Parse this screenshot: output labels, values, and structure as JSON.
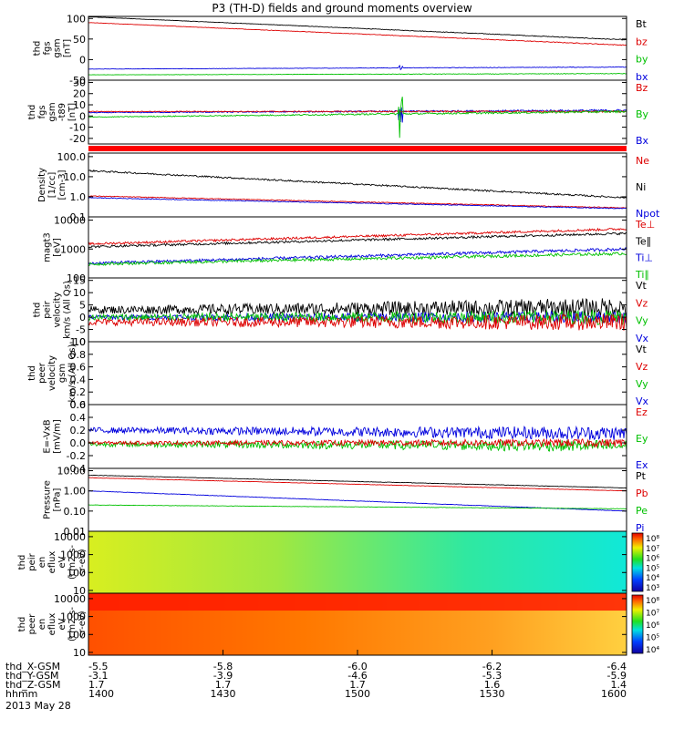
{
  "title": "P3 (TH-D) fields and ground moments overview",
  "date_label": "2013 May 28",
  "panels": [
    {
      "id": "fgs_gsm",
      "ylabel": [
        "thd",
        "fgs",
        "gsm",
        "[nT]"
      ],
      "scale": "linear",
      "ylim": [
        -50,
        105
      ],
      "yticks": [
        "100",
        "50",
        "0",
        "-50"
      ],
      "ytick_values": [
        100,
        50,
        0,
        -50
      ],
      "legend": [
        {
          "label": "Bt",
          "color": "#000000"
        },
        {
          "label": "bz",
          "color": "#dd0000"
        },
        {
          "label": "by",
          "color": "#00c000"
        },
        {
          "label": "bx",
          "color": "#0000dd"
        }
      ],
      "series": [
        {
          "color": "#000000",
          "start": 104,
          "end": 48,
          "noise": 0.6
        },
        {
          "color": "#dd0000",
          "start": 90,
          "end": 35,
          "noise": 0.6
        },
        {
          "color": "#0000dd",
          "start": -23,
          "end": -18,
          "noise": 0.5,
          "spike": 8
        },
        {
          "color": "#00c000",
          "start": -37,
          "end": -34,
          "noise": 0.5
        }
      ]
    },
    {
      "id": "fgs_gsm_dt",
      "ylabel": [
        "thd",
        "fgs",
        "gsm",
        "-t89",
        "[nT]"
      ],
      "scale": "linear",
      "ylim": [
        -25,
        32
      ],
      "yticks": [
        "30",
        "20",
        "10",
        "0",
        "-10",
        "-20"
      ],
      "ytick_values": [
        30,
        20,
        10,
        0,
        -10,
        -20
      ],
      "legend": [
        {
          "label": "Bz",
          "color": "#dd0000"
        },
        {
          "label": "By",
          "color": "#00c000"
        },
        {
          "label": "Bx",
          "color": "#0000dd"
        }
      ],
      "series": [
        {
          "color": "#0000dd",
          "start": 3,
          "end": 5,
          "noise": 0.6,
          "spike": 20
        },
        {
          "color": "#dd0000",
          "start": 4,
          "end": 4,
          "noise": 0.5
        },
        {
          "color": "#00c000",
          "start": -1,
          "end": 4,
          "noise": 0.6,
          "spike": 25
        }
      ]
    },
    {
      "id": "density",
      "ylabel": [
        "Density",
        "[1/cc]",
        "[cm-3]"
      ],
      "scale": "log",
      "ylim": [
        0.1,
        150
      ],
      "yticks": [
        "100.0",
        "10.0",
        "1.0",
        "0.1"
      ],
      "ytick_values": [
        100,
        10,
        1,
        0.1
      ],
      "legend": [
        {
          "label": "Ne",
          "color": "#dd0000"
        },
        {
          "label": "Ni",
          "color": "#000000"
        },
        {
          "label": "Npot",
          "color": "#0000dd"
        }
      ],
      "series": [
        {
          "color": "#000000",
          "start": 20,
          "end": 0.9,
          "noise": 0.04
        },
        {
          "color": "#dd0000",
          "start": 1.1,
          "end": 0.28,
          "noise": 0.02
        },
        {
          "color": "#0000dd",
          "start": 0.9,
          "end": 0.26,
          "noise": 0.02
        }
      ]
    },
    {
      "id": "temp",
      "ylabel": [
        "magt3",
        "[eV]"
      ],
      "scale": "log",
      "ylim": [
        100,
        13000
      ],
      "yticks": [
        "10000",
        "1000",
        "100"
      ],
      "ytick_values": [
        10000,
        1000,
        100
      ],
      "legend": [
        {
          "label": "Te⊥",
          "color": "#dd0000"
        },
        {
          "label": "Te∥",
          "color": "#000000"
        },
        {
          "label": "Ti⊥",
          "color": "#0000dd"
        },
        {
          "label": "Ti∥",
          "color": "#00c000"
        }
      ],
      "series": [
        {
          "color": "#dd0000",
          "start": 1500,
          "end": 5000,
          "noise": 0.04
        },
        {
          "color": "#000000",
          "start": 1200,
          "end": 3500,
          "noise": 0.04
        },
        {
          "color": "#0000dd",
          "start": 320,
          "end": 1000,
          "noise": 0.05
        },
        {
          "color": "#00c000",
          "start": 300,
          "end": 700,
          "noise": 0.05
        }
      ]
    },
    {
      "id": "peir_velocity",
      "ylabel": [
        "thd",
        "peir",
        "velocity",
        "km/s (All Qs)"
      ],
      "scale": "linear",
      "ylim": [
        -10,
        16
      ],
      "yticks": [
        "15",
        "10",
        "5",
        "0",
        "-5",
        "-10"
      ],
      "ytick_values": [
        15,
        10,
        5,
        0,
        -5,
        -10
      ],
      "legend": [
        {
          "label": "Vt",
          "color": "#000000"
        },
        {
          "label": "Vz",
          "color": "#dd0000"
        },
        {
          "label": "Vy",
          "color": "#00c000"
        },
        {
          "label": "Vx",
          "color": "#0000dd"
        }
      ],
      "series": [
        {
          "color": "#000000",
          "start": 3,
          "end": 4,
          "noise": 2.5
        },
        {
          "color": "#0000dd",
          "start": 0,
          "end": 0,
          "noise": 1.6
        },
        {
          "color": "#00c000",
          "start": 0,
          "end": 0,
          "noise": 2.0
        },
        {
          "color": "#dd0000",
          "start": -2,
          "end": -2,
          "noise": 2.2
        }
      ]
    },
    {
      "id": "peer_velocity",
      "ylabel": [
        "thd",
        "peer",
        "velocity",
        "gsm",
        "km/s (All Qs)"
      ],
      "scale": "linear",
      "ylim": [
        0,
        1
      ],
      "yticks": [
        "1.0",
        "0.8",
        "0.6",
        "0.4",
        "0.2",
        "0.0"
      ],
      "ytick_values": [
        1.0,
        0.8,
        0.6,
        0.4,
        0.2,
        0.0
      ],
      "legend": [
        {
          "label": "Vt",
          "color": "#000000"
        },
        {
          "label": "Vz",
          "color": "#dd0000"
        },
        {
          "label": "Vy",
          "color": "#00c000"
        },
        {
          "label": "Vx",
          "color": "#0000dd"
        }
      ],
      "series": []
    },
    {
      "id": "efield",
      "ylabel": [
        "E=-VxB",
        "[mV/m]"
      ],
      "scale": "linear",
      "ylim": [
        -0.4,
        0.6
      ],
      "yticks": [
        "0.6",
        "0.4",
        "0.2",
        "0.0",
        "-0.2",
        "-0.4"
      ],
      "ytick_values": [
        0.6,
        0.4,
        0.2,
        0.0,
        -0.2,
        -0.4
      ],
      "legend": [
        {
          "label": "Ez",
          "color": "#dd0000"
        },
        {
          "label": "Ey",
          "color": "#00c000"
        },
        {
          "label": "Ex",
          "color": "#0000dd"
        }
      ],
      "series": [
        {
          "color": "#0000dd",
          "start": 0.2,
          "end": 0.15,
          "noise": 0.07
        },
        {
          "color": "#00c000",
          "start": -0.02,
          "end": -0.05,
          "noise": 0.06
        },
        {
          "color": "#dd0000",
          "start": 0.0,
          "end": 0.0,
          "noise": 0.04
        }
      ]
    },
    {
      "id": "pressure",
      "ylabel": [
        "Pressure",
        "[nPa]"
      ],
      "scale": "log",
      "ylim": [
        0.01,
        13
      ],
      "yticks": [
        "10.00",
        "1.00",
        "0.10",
        "0.01"
      ],
      "ytick_values": [
        10,
        1,
        0.1,
        0.01
      ],
      "legend": [
        {
          "label": "Pt",
          "color": "#000000"
        },
        {
          "label": "Pb",
          "color": "#dd0000"
        },
        {
          "label": "Pe",
          "color": "#00c000"
        },
        {
          "label": "Pi",
          "color": "#0000dd"
        }
      ],
      "series": [
        {
          "color": "#000000",
          "start": 6,
          "end": 1.4,
          "noise": 0.01
        },
        {
          "color": "#dd0000",
          "start": 4.5,
          "end": 1.0,
          "noise": 0.01
        },
        {
          "color": "#0000dd",
          "start": 1.0,
          "end": 0.1,
          "noise": 0.01
        },
        {
          "color": "#00c000",
          "start": 0.2,
          "end": 0.13,
          "noise": 0.01
        }
      ]
    },
    {
      "id": "peir_spec",
      "ylabel": [
        "thd",
        "peir",
        "en",
        "eflux",
        "eV",
        "(cm2-s-",
        "sr-eV)"
      ],
      "scale": "log",
      "type": "spectrogram",
      "ylim": [
        7,
        20000
      ],
      "yticks": [
        "10000",
        "1000",
        "100",
        "10"
      ],
      "ytick_values": [
        10000,
        1000,
        100,
        10
      ],
      "colorbar": {
        "ticks": [
          "10⁸",
          "10⁷",
          "10⁶",
          "10⁵",
          "10⁴",
          "10³"
        ]
      }
    },
    {
      "id": "peer_spec",
      "ylabel": [
        "thd",
        "peer",
        "en",
        "eflux",
        "eV",
        "(cm2-s-",
        "sr-eV)"
      ],
      "scale": "log",
      "type": "spectrogram",
      "ylim": [
        7,
        20000
      ],
      "yticks": [
        "10000",
        "1000",
        "100",
        "10"
      ],
      "ytick_values": [
        10000,
        1000,
        100,
        10
      ],
      "colorbar": {
        "ticks": [
          "10⁸",
          "10⁷",
          "10⁶",
          "10⁵",
          "10⁴"
        ]
      }
    }
  ],
  "ephemeris": {
    "labels": [
      "thd_X-GSM",
      "thd_Y-GSM",
      "thd_Z-GSM",
      "hhmm"
    ],
    "columns": [
      [
        "-5.5",
        "-3.1",
        "1.7",
        "1400"
      ],
      [
        "-5.8",
        "-3.9",
        "1.7",
        "1430"
      ],
      [
        "-6.0",
        "-4.6",
        "1.7",
        "1500"
      ],
      [
        "-6.2",
        "-5.3",
        "1.6",
        "1530"
      ],
      [
        "-6.4",
        "-5.9",
        "1.4",
        "1600"
      ]
    ]
  },
  "chart_data": {
    "type": "line",
    "title": "P3 (TH-D) fields and ground moments overview",
    "x": [
      "1400",
      "1430",
      "1500",
      "1530",
      "1600"
    ],
    "xlabel": "hhmm",
    "series": [
      {
        "name": "Bt",
        "panel": "fgs_gsm",
        "values": [
          104,
          90,
          76,
          62,
          48
        ]
      },
      {
        "name": "bz",
        "panel": "fgs_gsm",
        "values": [
          90,
          76,
          62,
          49,
          35
        ]
      },
      {
        "name": "by",
        "panel": "fgs_gsm",
        "values": [
          -37,
          -36,
          -35,
          -35,
          -34
        ]
      },
      {
        "name": "bx",
        "panel": "fgs_gsm",
        "values": [
          -23,
          -22,
          -21,
          -19,
          -18
        ]
      },
      {
        "name": "Ni",
        "panel": "density",
        "values": [
          20,
          9,
          4,
          1.8,
          0.9
        ]
      },
      {
        "name": "Ne",
        "panel": "density",
        "values": [
          1.1,
          0.8,
          0.55,
          0.4,
          0.28
        ]
      },
      {
        "name": "Npot",
        "panel": "density",
        "values": [
          0.9,
          0.65,
          0.48,
          0.35,
          0.26
        ]
      },
      {
        "name": "Pt",
        "panel": "pressure",
        "values": [
          6,
          4,
          2.8,
          2.0,
          1.4
        ]
      },
      {
        "name": "Pb",
        "panel": "pressure",
        "values": [
          4.5,
          3.0,
          2.1,
          1.5,
          1.0
        ]
      },
      {
        "name": "Pi",
        "panel": "pressure",
        "values": [
          1.0,
          0.55,
          0.3,
          0.17,
          0.1
        ]
      },
      {
        "name": "Pe",
        "panel": "pressure",
        "values": [
          0.2,
          0.18,
          0.16,
          0.14,
          0.13
        ]
      }
    ]
  }
}
